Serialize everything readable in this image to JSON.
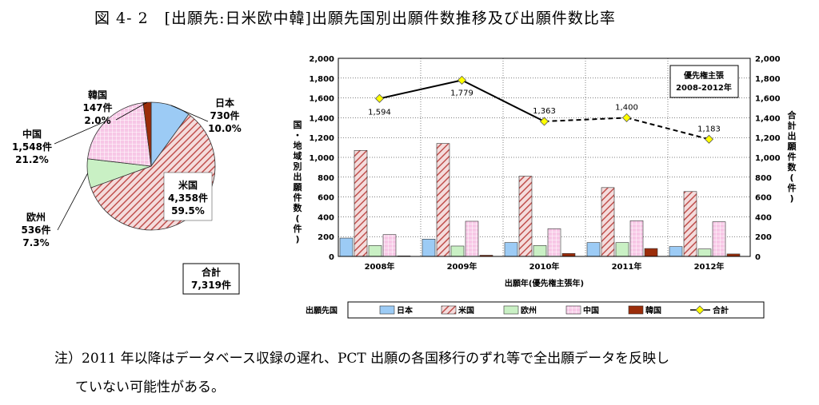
{
  "title": "図 4- 2　[出願先:日米欧中韓]出願先国別出願件数推移及び出願件数比率",
  "note_line1": "注）2011 年以降はデータベース収録の遅れ、PCT 出願の各国移行のずれ等で全出願データを反映し",
  "note_line2": "ていない可能性がある。",
  "chart_data": [
    {
      "type": "pie",
      "slices": [
        {
          "name": "日本",
          "count": "730件",
          "pct": "10.0%",
          "value": 730,
          "color": "#9ccbf5"
        },
        {
          "name": "米国",
          "count": "4,358件",
          "pct": "59.5%",
          "value": 4358,
          "color": "#c0504d"
        },
        {
          "name": "欧州",
          "count": "536件",
          "pct": "7.3%",
          "value": 536,
          "color": "#c9f0c4"
        },
        {
          "name": "中国",
          "count": "1,548件",
          "pct": "21.2%",
          "value": 1548,
          "color": "#f7c7e6"
        },
        {
          "name": "韓国",
          "count": "147件",
          "pct": "2.0%",
          "value": 147,
          "color": "#9b2d0a"
        }
      ],
      "total_label": "合計",
      "total_value": "7,319件"
    },
    {
      "type": "bar",
      "categories": [
        "2008年",
        "2009年",
        "2010年",
        "2011年",
        "2012年"
      ],
      "xlabel": "出願年(優先権主張年)",
      "ylabel_left": "国・地域別出願件数(件)",
      "ylabel_right": "合計出願件数(件)",
      "ylim": [
        0,
        2000
      ],
      "yticks": [
        "0",
        "200",
        "400",
        "600",
        "800",
        "1,000",
        "1,200",
        "1,400",
        "1,600",
        "1,800",
        "2,000"
      ],
      "series": [
        {
          "name": "日本",
          "values": [
            185,
            175,
            140,
            140,
            100
          ],
          "color": "#9ccbf5"
        },
        {
          "name": "米国",
          "values": [
            1070,
            1140,
            810,
            695,
            655
          ],
          "color": "#c0504d"
        },
        {
          "name": "欧州",
          "values": [
            110,
            105,
            110,
            140,
            75
          ],
          "color": "#c9f0c4"
        },
        {
          "name": "中国",
          "values": [
            220,
            355,
            280,
            360,
            350
          ],
          "color": "#f7c7e6"
        },
        {
          "name": "韓国",
          "values": [
            5,
            12,
            30,
            80,
            25
          ],
          "color": "#9b2d0a"
        }
      ],
      "total": {
        "name": "合計",
        "values": [
          1594,
          1779,
          1363,
          1400,
          1183
        ],
        "labels": [
          "1,594",
          "1,779",
          "1,363",
          "1,400",
          "1,183"
        ]
      },
      "priority_box": [
        "優先権主張",
        "2008-2012年"
      ],
      "legend_title": "出願先国"
    }
  ]
}
